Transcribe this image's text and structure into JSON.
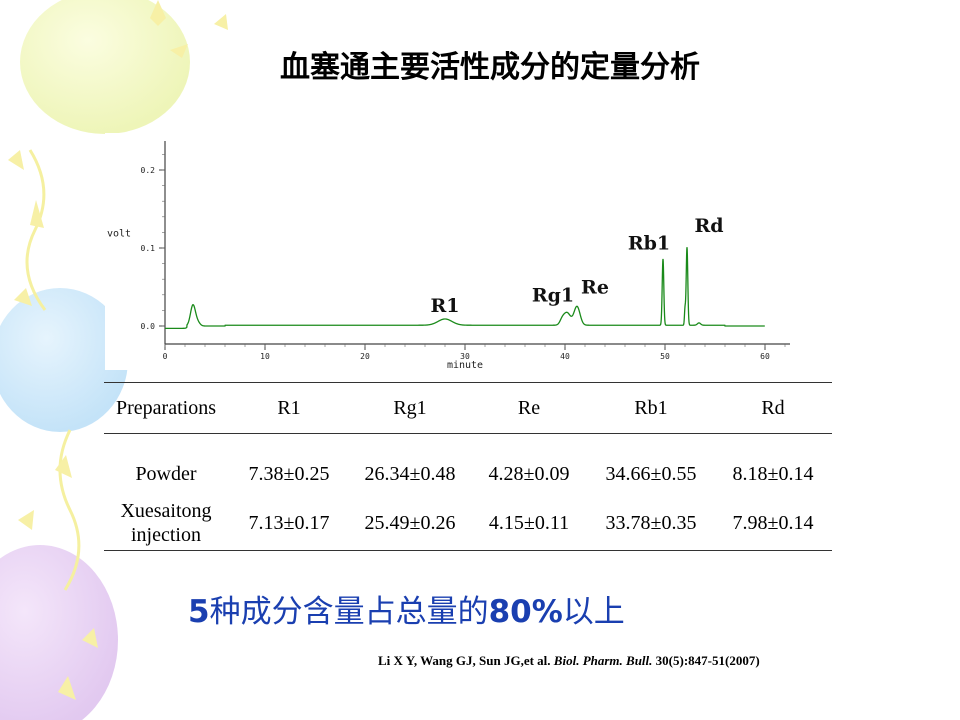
{
  "title": "血塞通主要活性成分的定量分析",
  "conclusion": {
    "lead": "5",
    "middle": "种成分含量占总量的",
    "percent": "80%",
    "tail": "以上"
  },
  "citation": {
    "authors": "Li X Y, Wang GJ, Sun JG,et al.",
    "journal": "Biol. Pharm. Bull.",
    "ref": "30(5):847-51(2007)"
  },
  "chart_data": {
    "type": "line",
    "xlabel": "minute",
    "ylabel": "volt",
    "xlim": [
      0,
      62
    ],
    "ylim": [
      -0.01,
      0.24
    ],
    "xticks": [
      "0",
      "10",
      "20",
      "30",
      "40",
      "50",
      "60"
    ],
    "yticks": [
      "0.0",
      "0.1",
      "0.2"
    ],
    "line_color": "#1a8a1a",
    "peaks": [
      {
        "label": "",
        "x": 2.8,
        "y": 0.027
      },
      {
        "label": "R1",
        "x": 28.0,
        "y": 0.008
      },
      {
        "label": "Rg1",
        "x": 40.2,
        "y": 0.016
      },
      {
        "label": "Re",
        "x": 41.2,
        "y": 0.024
      },
      {
        "label": "Rb1",
        "x": 49.8,
        "y": 0.085
      },
      {
        "label": "Rd",
        "x": 52.2,
        "y": 0.1
      }
    ]
  },
  "table": {
    "headers": [
      "Preparations",
      "R1",
      "Rg1",
      "Re",
      "Rb1",
      "Rd"
    ],
    "rows": [
      {
        "label": [
          "Powder"
        ],
        "values": [
          "7.38±0.25",
          "26.34±0.48",
          "4.28±0.09",
          "34.66±0.55",
          "8.18±0.14"
        ]
      },
      {
        "label": [
          "Xuesaitong",
          "injection"
        ],
        "values": [
          "7.13±0.17",
          "25.49±0.26",
          "4.15±0.11",
          "33.78±0.35",
          "7.98±0.14"
        ]
      }
    ]
  }
}
